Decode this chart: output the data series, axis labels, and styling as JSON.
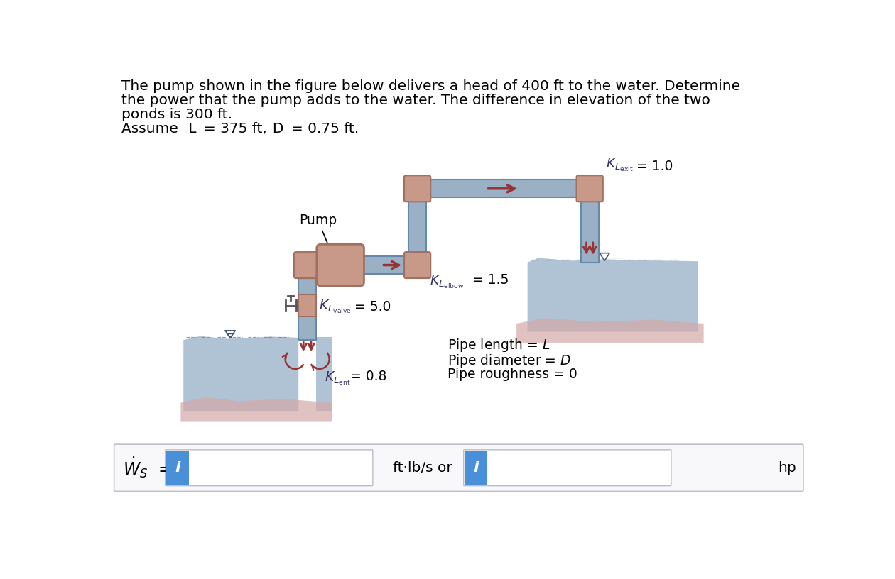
{
  "title_line1": "The pump shown in the figure below delivers a head of 400 ft to the water. Determine",
  "title_line2": "the power that the pump adds to the water. The difference in elevation of the two",
  "title_line3": "ponds is 300 ft.",
  "title_line4": "Assume L = 375 ft, D = 0.75 ft.",
  "bg_color": "#ffffff",
  "blue_btn_color": "#4a90d9",
  "water_fill_color": "#a8bdd0",
  "water_wave_color": "#d4a8a8",
  "pipe_color": "#9ab0c4",
  "pipe_stroke": "#6688aa",
  "elbow_color": "#c89888",
  "elbow_stroke": "#a07060",
  "pump_body_color": "#c89888",
  "pump_stroke": "#a07060",
  "arrow_color": "#993333",
  "text_color": "#333366",
  "lw_pipe": 1.5,
  "pipe_half": 16
}
